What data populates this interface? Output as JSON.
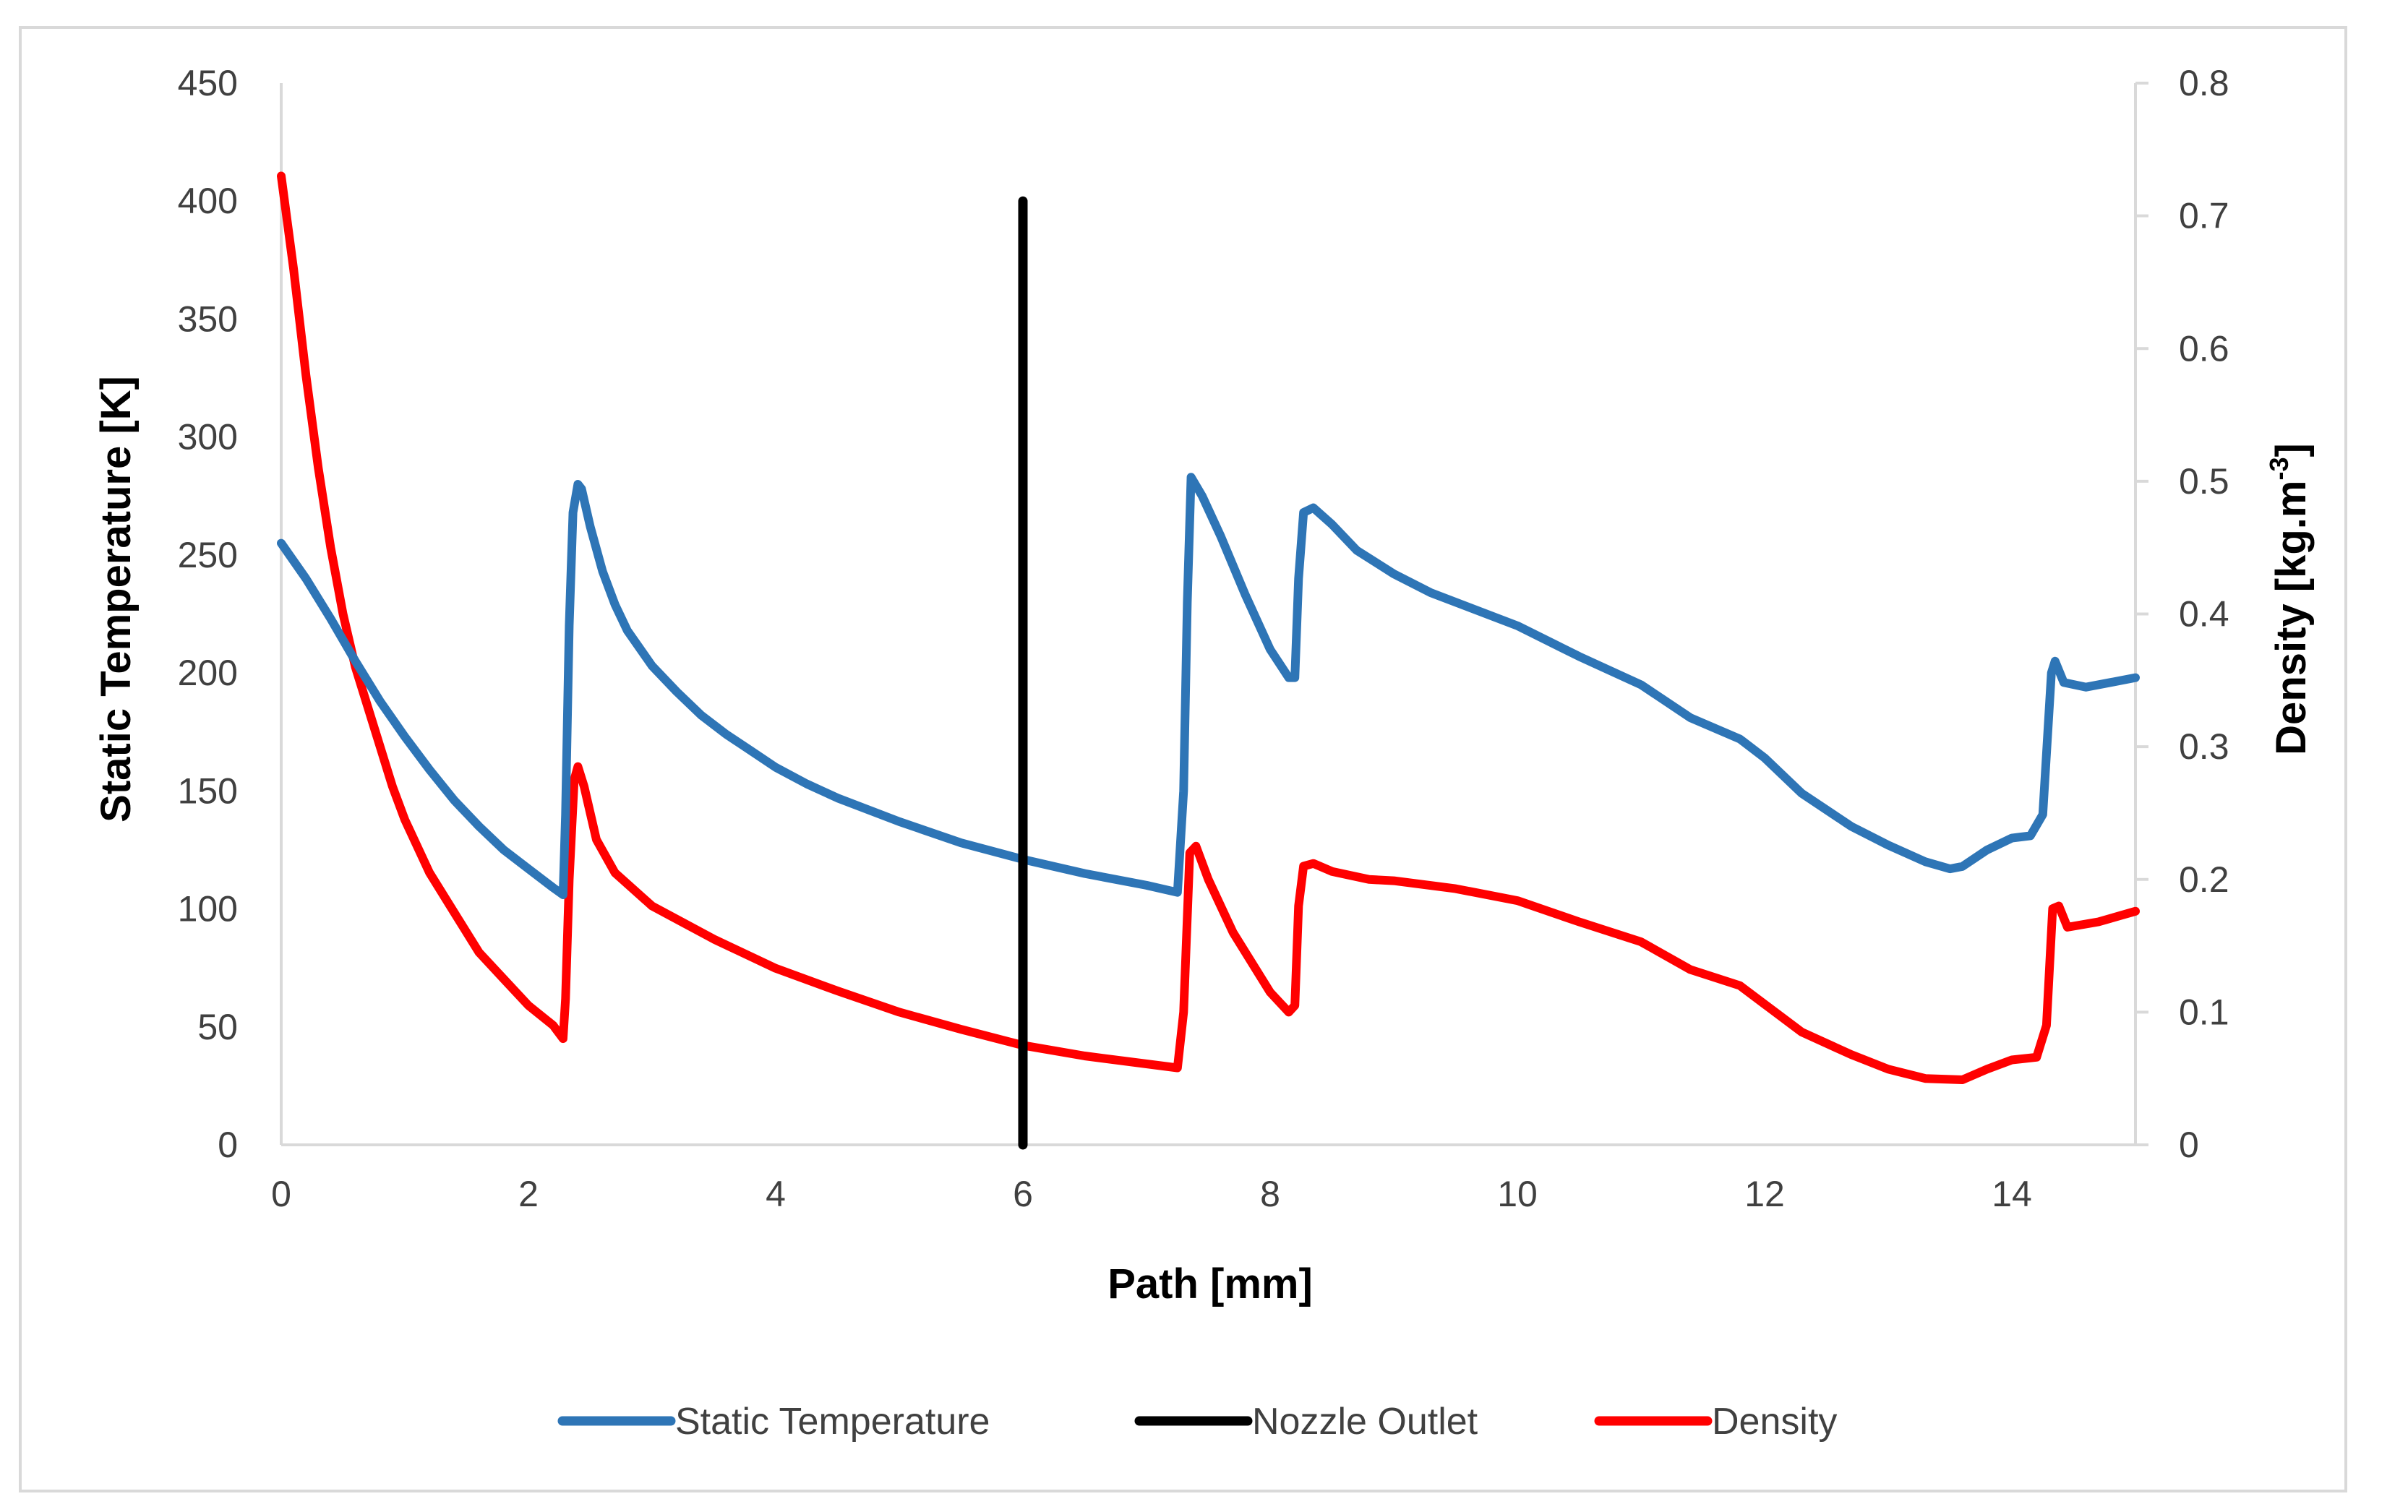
{
  "chart_data": {
    "type": "line",
    "title": "",
    "xlabel": "Path [mm]",
    "ylabel_left": "Static Temperature [K]",
    "ylabel_right": {
      "base": "Density [kg.m",
      "sup": "-3",
      "close": "]"
    },
    "xlim": [
      0,
      15
    ],
    "ylim_left": [
      0,
      450
    ],
    "ylim_right": [
      0,
      0.8
    ],
    "x_ticks": [
      0,
      2,
      4,
      6,
      8,
      10,
      12,
      14
    ],
    "y_left_ticks": [
      0,
      50,
      100,
      150,
      200,
      250,
      300,
      350,
      400,
      450
    ],
    "y_right_ticks": [
      "0",
      "0.1",
      "0.2",
      "0.3",
      "0.4",
      "0.5",
      "0.6",
      "0.7",
      "0.8"
    ],
    "grid": false,
    "legend_position": "bottom",
    "series": [
      {
        "name": "Static Temperature",
        "axis": "left",
        "color": "#2E75B6",
        "points": [
          [
            0,
            255
          ],
          [
            0.2,
            240
          ],
          [
            0.4,
            223
          ],
          [
            0.6,
            205
          ],
          [
            0.8,
            188
          ],
          [
            1,
            173
          ],
          [
            1.2,
            159
          ],
          [
            1.4,
            146
          ],
          [
            1.6,
            135
          ],
          [
            1.8,
            125
          ],
          [
            2,
            117
          ],
          [
            2.2,
            109
          ],
          [
            2.28,
            106
          ],
          [
            2.3,
            140
          ],
          [
            2.33,
            220
          ],
          [
            2.36,
            268
          ],
          [
            2.4,
            280
          ],
          [
            2.43,
            278
          ],
          [
            2.5,
            262
          ],
          [
            2.6,
            243
          ],
          [
            2.7,
            229
          ],
          [
            2.8,
            218
          ],
          [
            3,
            203
          ],
          [
            3.2,
            192
          ],
          [
            3.4,
            182
          ],
          [
            3.6,
            174
          ],
          [
            3.8,
            167
          ],
          [
            4,
            160
          ],
          [
            4.25,
            153
          ],
          [
            4.5,
            147
          ],
          [
            5,
            137
          ],
          [
            5.5,
            128
          ],
          [
            6,
            121
          ],
          [
            6.5,
            115
          ],
          [
            7,
            110
          ],
          [
            7.25,
            107
          ],
          [
            7.3,
            150
          ],
          [
            7.33,
            230
          ],
          [
            7.36,
            283
          ],
          [
            7.45,
            275
          ],
          [
            7.6,
            258
          ],
          [
            7.8,
            233
          ],
          [
            8,
            210
          ],
          [
            8.15,
            198
          ],
          [
            8.2,
            198
          ],
          [
            8.23,
            240
          ],
          [
            8.27,
            268
          ],
          [
            8.35,
            270
          ],
          [
            8.5,
            263
          ],
          [
            8.7,
            252
          ],
          [
            9,
            242
          ],
          [
            9.3,
            234
          ],
          [
            9.6,
            228
          ],
          [
            10,
            220
          ],
          [
            10.5,
            207
          ],
          [
            11,
            195
          ],
          [
            11.4,
            181
          ],
          [
            11.8,
            172
          ],
          [
            12,
            164
          ],
          [
            12.3,
            149
          ],
          [
            12.7,
            135
          ],
          [
            13,
            127
          ],
          [
            13.3,
            120
          ],
          [
            13.5,
            117
          ],
          [
            13.6,
            118
          ],
          [
            13.8,
            125
          ],
          [
            14,
            130
          ],
          [
            14.15,
            131
          ],
          [
            14.25,
            140
          ],
          [
            14.32,
            200
          ],
          [
            14.35,
            205
          ],
          [
            14.42,
            196
          ],
          [
            14.6,
            194
          ],
          [
            14.8,
            196
          ],
          [
            15,
            198
          ]
        ]
      },
      {
        "name": "Nozzle Outlet",
        "axis": "left",
        "color": "#000000",
        "points": [
          [
            6,
            0
          ],
          [
            6,
            400
          ]
        ]
      },
      {
        "name": "Density",
        "axis": "right",
        "color": "#FF0000",
        "points": [
          [
            0,
            0.73
          ],
          [
            0.1,
            0.66
          ],
          [
            0.2,
            0.58
          ],
          [
            0.3,
            0.51
          ],
          [
            0.4,
            0.45
          ],
          [
            0.5,
            0.4
          ],
          [
            0.6,
            0.36
          ],
          [
            0.7,
            0.33
          ],
          [
            0.8,
            0.3
          ],
          [
            0.9,
            0.27
          ],
          [
            1,
            0.245
          ],
          [
            1.2,
            0.205
          ],
          [
            1.4,
            0.175
          ],
          [
            1.6,
            0.145
          ],
          [
            1.8,
            0.125
          ],
          [
            2,
            0.105
          ],
          [
            2.2,
            0.09
          ],
          [
            2.28,
            0.08
          ],
          [
            2.3,
            0.11
          ],
          [
            2.33,
            0.2
          ],
          [
            2.37,
            0.275
          ],
          [
            2.4,
            0.285
          ],
          [
            2.45,
            0.27
          ],
          [
            2.55,
            0.23
          ],
          [
            2.7,
            0.205
          ],
          [
            3,
            0.18
          ],
          [
            3.5,
            0.155
          ],
          [
            4,
            0.133
          ],
          [
            4.5,
            0.116
          ],
          [
            5,
            0.1
          ],
          [
            5.5,
            0.087
          ],
          [
            6,
            0.075
          ],
          [
            6.5,
            0.067
          ],
          [
            7,
            0.061
          ],
          [
            7.25,
            0.058
          ],
          [
            7.3,
            0.1
          ],
          [
            7.35,
            0.22
          ],
          [
            7.4,
            0.225
          ],
          [
            7.5,
            0.2
          ],
          [
            7.7,
            0.16
          ],
          [
            8,
            0.115
          ],
          [
            8.15,
            0.1
          ],
          [
            8.2,
            0.105
          ],
          [
            8.23,
            0.18
          ],
          [
            8.27,
            0.21
          ],
          [
            8.35,
            0.212
          ],
          [
            8.5,
            0.206
          ],
          [
            8.8,
            0.2
          ],
          [
            9,
            0.199
          ],
          [
            9.5,
            0.193
          ],
          [
            10,
            0.184
          ],
          [
            10.5,
            0.168
          ],
          [
            11,
            0.153
          ],
          [
            11.4,
            0.132
          ],
          [
            11.8,
            0.12
          ],
          [
            12,
            0.106
          ],
          [
            12.3,
            0.085
          ],
          [
            12.7,
            0.068
          ],
          [
            13,
            0.057
          ],
          [
            13.3,
            0.05
          ],
          [
            13.6,
            0.049
          ],
          [
            13.8,
            0.057
          ],
          [
            14,
            0.064
          ],
          [
            14.2,
            0.066
          ],
          [
            14.28,
            0.09
          ],
          [
            14.33,
            0.178
          ],
          [
            14.38,
            0.18
          ],
          [
            14.45,
            0.164
          ],
          [
            14.7,
            0.168
          ],
          [
            15,
            0.176
          ]
        ]
      }
    ]
  }
}
